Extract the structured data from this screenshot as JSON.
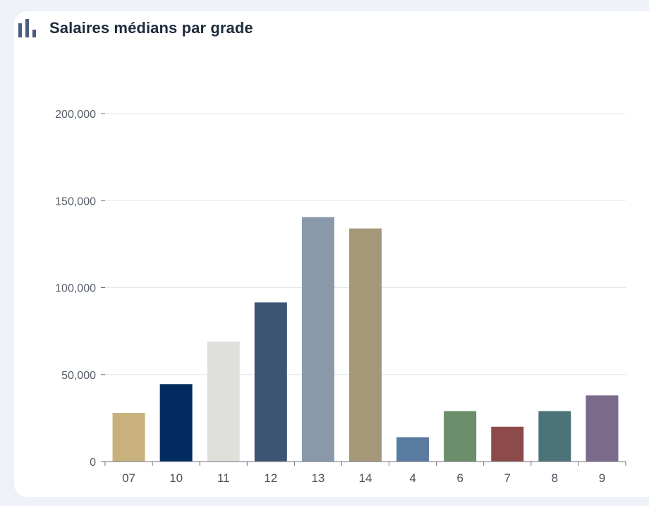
{
  "widget": {
    "title": "Salaires médians par grade",
    "icon": "bar-chart-icon",
    "icon_color": "#4b5f7c"
  },
  "chart_data": {
    "type": "bar",
    "title": "Salaires médians par grade",
    "xlabel": "",
    "ylabel": "",
    "categories": [
      "07",
      "10",
      "11",
      "12",
      "13",
      "14",
      "4",
      "6",
      "7",
      "8",
      "9"
    ],
    "values": [
      28000,
      44500,
      69000,
      91500,
      140500,
      134000,
      14000,
      29000,
      20000,
      29000,
      38000
    ],
    "colors": [
      "#c8b17c",
      "#022c60",
      "#dfdfdb",
      "#3c5573",
      "#8a99aa",
      "#a59878",
      "#5a7ba0",
      "#6a8f6a",
      "#8c4a4a",
      "#4a7478",
      "#7b6a8a"
    ],
    "ylim": [
      0,
      200000
    ],
    "yticks": [
      0,
      50000,
      100000,
      150000,
      200000
    ],
    "ytick_labels": [
      "0",
      "50,000",
      "100,000",
      "150,000",
      "200,000"
    ],
    "grid": true,
    "legend": "none"
  }
}
